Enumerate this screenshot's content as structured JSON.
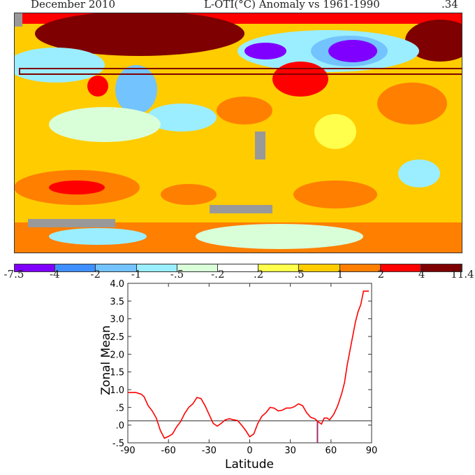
{
  "header": {
    "date": "December 2010",
    "title": "L-OTI(°C) Anomaly vs 1961-1990",
    "global_mean": ".34"
  },
  "colorbar": {
    "labels": [
      "-7.5",
      "-4",
      "-2",
      "-1",
      "-.5",
      "-.2",
      ".2",
      ".5",
      "1",
      "2",
      "4",
      "11.4"
    ],
    "colors": [
      "#8000ff",
      "#3f8fff",
      "#73c3ff",
      "#9beeff",
      "#d9ffd9",
      "#ffffff",
      "#ffff4c",
      "#ffcc00",
      "#ff7f00",
      "#ff0000",
      "#7f0000"
    ],
    "missing_color": "#999999"
  },
  "chart_data": {
    "type": "line",
    "xlabel": "Latitude",
    "ylabel": "Zonal Mean",
    "xlim": [
      -90,
      90
    ],
    "ylim": [
      -0.5,
      4.0
    ],
    "xticks": [
      "-90",
      "-60",
      "-30",
      "0",
      "30",
      "60",
      "90"
    ],
    "yticks": [
      "-.5",
      ".0",
      ".5",
      "1.0",
      "1.5",
      "2.0",
      "2.5",
      "3.0",
      "3.5",
      "4.0"
    ],
    "reference_line": 0.12,
    "marker_latitude": 50,
    "series": [
      {
        "name": "zonal mean",
        "color": "#ff0000",
        "x": [
          -90,
          -84,
          -80,
          -78,
          -75,
          -72,
          -69,
          -66,
          -63,
          -60,
          -57,
          -54,
          -51,
          -48,
          -45,
          -42,
          -39,
          -36,
          -33,
          -30,
          -27,
          -24,
          -21,
          -18,
          -15,
          -12,
          -9,
          -6,
          -3,
          0,
          3,
          6,
          9,
          12,
          15,
          18,
          21,
          24,
          27,
          30,
          33,
          36,
          39,
          42,
          45,
          48,
          51,
          53,
          55,
          57,
          59,
          62,
          65,
          68,
          70,
          72,
          75,
          78,
          80,
          82,
          84,
          88
        ],
        "y": [
          0.92,
          0.92,
          0.87,
          0.8,
          0.55,
          0.4,
          0.2,
          -0.15,
          -0.37,
          -0.32,
          -0.25,
          -0.05,
          0.1,
          0.33,
          0.5,
          0.6,
          0.78,
          0.75,
          0.55,
          0.3,
          0.05,
          -0.03,
          0.05,
          0.15,
          0.18,
          0.15,
          0.13,
          0.0,
          -0.15,
          -0.33,
          -0.25,
          0.05,
          0.25,
          0.35,
          0.5,
          0.48,
          0.4,
          0.42,
          0.48,
          0.48,
          0.52,
          0.6,
          0.55,
          0.35,
          0.22,
          0.18,
          0.08,
          0.03,
          0.2,
          0.2,
          0.15,
          0.3,
          0.55,
          0.9,
          1.2,
          1.7,
          2.3,
          2.9,
          3.2,
          3.4,
          3.78,
          3.78
        ]
      }
    ]
  }
}
